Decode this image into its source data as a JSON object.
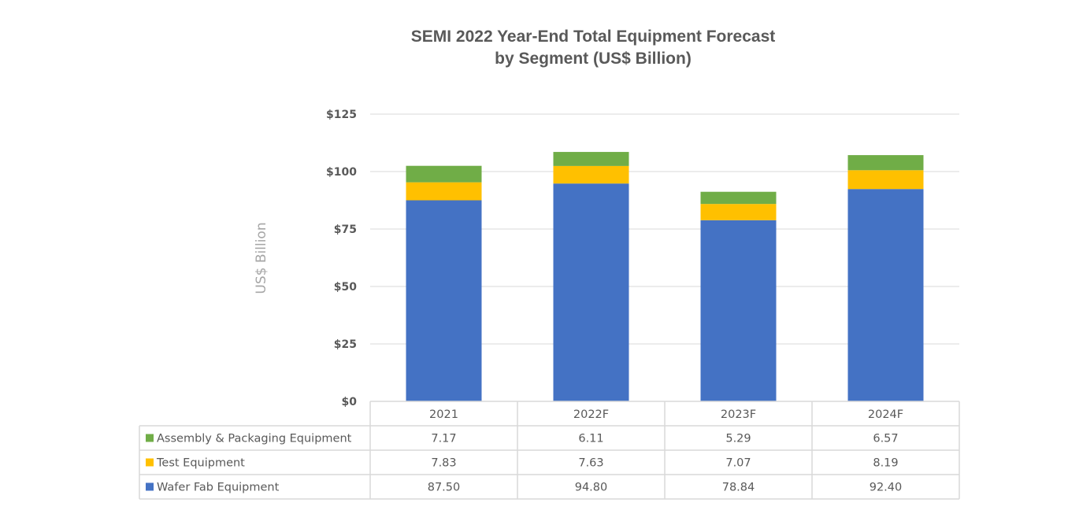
{
  "chart_data": {
    "type": "bar",
    "stacked": true,
    "title": "SEMI 2022 Year-End Total Equipment Forecast",
    "subtitle": "by Segment (US$ Billion)",
    "xlabel": "",
    "ylabel": "US$ Billion",
    "ylim": [
      0,
      125
    ],
    "yticks": [
      0,
      25,
      50,
      75,
      100,
      125
    ],
    "ytick_labels": [
      "$0",
      "$25",
      "$50",
      "$75",
      "$100",
      "$125"
    ],
    "grid": true,
    "legend_placement": "data-table-left",
    "categories": [
      "2021",
      "2022F",
      "2023F",
      "2024F"
    ],
    "series": [
      {
        "name": "Wafer Fab Equipment",
        "color": "#4472c4",
        "values": [
          87.5,
          94.8,
          78.84,
          92.4
        ],
        "labels": [
          "87.50",
          "94.80",
          "78.84",
          "92.40"
        ]
      },
      {
        "name": "Test Equipment",
        "color": "#ffc000",
        "values": [
          7.83,
          7.63,
          7.07,
          8.19
        ],
        "labels": [
          "7.83",
          "7.63",
          "7.07",
          "8.19"
        ]
      },
      {
        "name": "Assembly & Packaging Equipment",
        "color": "#70ad47",
        "values": [
          7.17,
          6.11,
          5.29,
          6.57
        ],
        "labels": [
          "7.17",
          "6.11",
          "5.29",
          "6.57"
        ]
      }
    ],
    "table_row_order": [
      "Assembly & Packaging Equipment",
      "Test Equipment",
      "Wafer Fab Equipment"
    ]
  }
}
